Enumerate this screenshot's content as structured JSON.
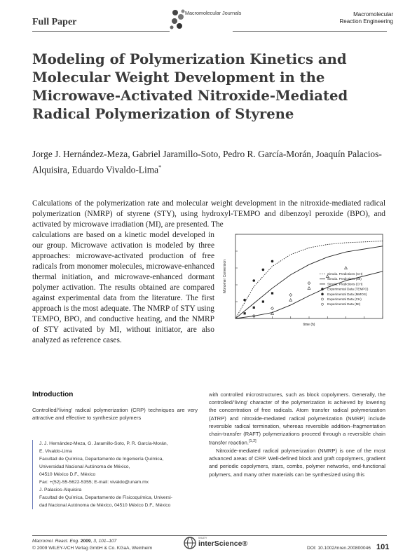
{
  "header": {
    "section": "Full Paper",
    "logo_text": "Macromolecular Journals",
    "journal_name_line1": "Macromolecular",
    "journal_name_line2": "Reaction Engineering"
  },
  "article": {
    "title": "Modeling of Polymerization Kinetics and Molecular Weight Development in the Microwave-Activated Nitroxide-Mediated Radical Polymerization of Styrene",
    "authors": "Jorge J. Hernández-Meza, Gabriel Jaramillo-Soto, Pedro R. García-Morán, Joaquín Palacios-Alquisira, Eduardo Vivaldo-Lima",
    "corresponding_mark": "*",
    "abstract_top": "Calculations of the polymerization rate and molecular weight development in the nitroxide-mediated radical polymerization (NMRP) of styrene (STY), using hydroxyl-TEMPO and dibenzoyl peroxide (BPO), and activated by microwave irradiation (MI), are presented. The",
    "abstract_left": "calculations are based on a kinetic model developed in our group. Microwave activation is modeled by three approaches: microwave-activated production of free radicals from monomer molecules, microwave-enhanced thermal initiation, and microwave-enhanced dormant polymer activation. The results obtained are compared against experimental data from the literature. The first approach is the most adequate. The NMRP of STY using TEMPO, BPO, and conductive heating, and the NMRP of STY activated by MI, without initiator, are also analyzed as reference cases."
  },
  "chart_data": {
    "type": "scatter",
    "xlabel": "time (h)",
    "ylabel": "Monomer Conversion",
    "legend_position": "center-right",
    "legend": [
      "Simula. Predictions (CH)",
      "Simula. Predictions (MI)",
      "Simula. Predictions (CH)",
      "Experimental Data (TEMPO)",
      "Experimental Data (MMOS)",
      "Experimental Data (CH)",
      "Experimental Data (MI)"
    ],
    "curves": [
      {
        "style": "dotted",
        "points": [
          [
            0,
            0
          ],
          [
            1,
            0.38
          ],
          [
            2,
            0.62
          ],
          [
            3,
            0.76
          ],
          [
            4,
            0.84
          ],
          [
            5,
            0.88
          ],
          [
            6,
            0.9
          ],
          [
            8,
            0.92
          ]
        ]
      },
      {
        "style": "solid",
        "points": [
          [
            0,
            0
          ],
          [
            1,
            0.18
          ],
          [
            2,
            0.36
          ],
          [
            3,
            0.52
          ],
          [
            4,
            0.64
          ],
          [
            5,
            0.73
          ],
          [
            6,
            0.79
          ],
          [
            8,
            0.86
          ]
        ]
      },
      {
        "style": "solid",
        "points": [
          [
            0,
            0
          ],
          [
            1,
            0.03
          ],
          [
            2,
            0.07
          ],
          [
            3,
            0.16
          ],
          [
            4,
            0.27
          ],
          [
            5,
            0.37
          ],
          [
            6,
            0.45
          ],
          [
            8,
            0.56
          ]
        ]
      }
    ],
    "scatter": [
      {
        "marker": "square-filled",
        "points": [
          [
            0.5,
            0.06
          ],
          [
            1,
            0.13
          ],
          [
            1.5,
            0.2
          ],
          [
            2,
            0.3
          ]
        ]
      },
      {
        "marker": "circle-filled",
        "points": [
          [
            0.5,
            0.22
          ],
          [
            1,
            0.45
          ],
          [
            1.5,
            0.58
          ],
          [
            2,
            0.68
          ]
        ]
      },
      {
        "marker": "triangle-open",
        "points": [
          [
            2,
            0.06
          ],
          [
            3,
            0.22
          ],
          [
            4,
            0.36
          ],
          [
            5,
            0.5
          ],
          [
            6,
            0.6
          ]
        ]
      },
      {
        "marker": "diamond-open",
        "points": [
          [
            1,
            0.03
          ],
          [
            2,
            0.12
          ],
          [
            3,
            0.28
          ],
          [
            4,
            0.42
          ]
        ]
      }
    ],
    "xlim": [
      0,
      8
    ],
    "ylim": [
      0,
      1
    ]
  },
  "intro": {
    "heading": "Introduction",
    "col1_text": "Controlled/‘living’ radical polymerization (CRP) techniques are very attractive and effective to synthesize polymers",
    "col2_p1": "with controlled microstructures, such as block copolymers. Generally, the controlled/‘living’ character of the polymerization is achieved by lowering the concentration of free radicals. Atom transfer radical polymerization (ATRP) and nitroxide-mediated radical polymerization (NMRP) include reversible radical termination, whereas reversible addition–fragmentation chain-transfer (RAFT) polymerizations proceed through a reversible chain transfer reaction.",
    "col2_ref": "[1,2]",
    "col2_p2": "Nitroxide-mediated radical polymerization (NMRP) is one of the most advanced areas of CRP. Well-defined block and graft copolymers, gradient and periodic copolymers, stars, combs, polymer networks, end-functional polymers, and many other materials can be synthesized using this"
  },
  "affiliations": [
    "J. J. Hernández-Meza, G. Jaramillo-Soto, P. R. García-Morán,",
    "E. Vivaldo-Lima",
    "Facultad de Química, Departamento de Ingeniería Química,",
    "Universidad Nacional Autónoma de México,",
    "04510 México D.F., México",
    "Fax: +(52)-55-5622-5355; E-mail: vivaldo@unam.mx",
    "J. Palacios-Alquisira",
    "Facultad de Química, Departamento de Fisicoquímica, Universi-",
    "dad Nacional Autónoma de México, 04510 México D.F., México"
  ],
  "footer": {
    "journal_abbrev": "Macromol. React. Eng.",
    "year": "2009",
    "volume_pages": ", 3, 101–107",
    "copyright": "© 2009 WILEY-VCH Verlag GmbH & Co. KGaA, Weinheim",
    "publisher_logo": "interScience®",
    "publisher_prefix": "WILEY",
    "doi": "DOI: 10.1002/mren.200800046",
    "page": "101"
  }
}
